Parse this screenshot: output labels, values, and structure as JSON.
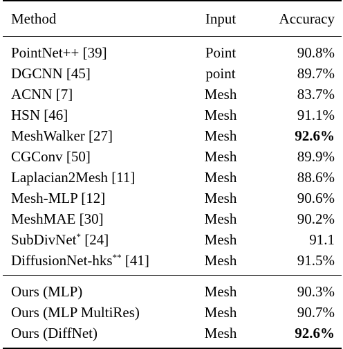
{
  "table": {
    "headers": {
      "method": "Method",
      "input": "Input",
      "accuracy": "Accuracy"
    },
    "rows": [
      {
        "method": "PointNet++ [39]",
        "sup": "",
        "method_tail": "",
        "input": "Point",
        "accuracy": "90.8%",
        "bold": false
      },
      {
        "method": "DGCNN [45]",
        "sup": "",
        "method_tail": "",
        "input": "point",
        "accuracy": "89.7%",
        "bold": false
      },
      {
        "method": "ACNN [7]",
        "sup": "",
        "method_tail": "",
        "input": "Mesh",
        "accuracy": "83.7%",
        "bold": false
      },
      {
        "method": "HSN [46]",
        "sup": "",
        "method_tail": "",
        "input": "Mesh",
        "accuracy": "91.1%",
        "bold": false
      },
      {
        "method": "MeshWalker [27]",
        "sup": "",
        "method_tail": "",
        "input": "Mesh",
        "accuracy": "92.6%",
        "bold": true
      },
      {
        "method": "CGConv [50]",
        "sup": "",
        "method_tail": "",
        "input": "Mesh",
        "accuracy": "89.9%",
        "bold": false
      },
      {
        "method": "Laplacian2Mesh [11]",
        "sup": "",
        "method_tail": "",
        "input": "Mesh",
        "accuracy": "88.6%",
        "bold": false
      },
      {
        "method": "Mesh-MLP [12]",
        "sup": "",
        "method_tail": "",
        "input": "Mesh",
        "accuracy": "90.6%",
        "bold": false
      },
      {
        "method": "MeshMAE [30]",
        "sup": "",
        "method_tail": "",
        "input": "Mesh",
        "accuracy": "90.2%",
        "bold": false
      },
      {
        "method": "SubDivNet",
        "sup": "*",
        "method_tail": " [24]",
        "input": "Mesh",
        "accuracy": "91.1",
        "bold": false
      },
      {
        "method": "DiffusionNet-hks",
        "sup": "**",
        "method_tail": " [41]",
        "input": "Mesh",
        "accuracy": "91.5%",
        "bold": false
      }
    ],
    "ours": [
      {
        "method": "Ours (MLP)",
        "input": "Mesh",
        "accuracy": "90.3%",
        "bold": false
      },
      {
        "method": "Ours (MLP MultiRes)",
        "input": "Mesh",
        "accuracy": "90.7%",
        "bold": false
      },
      {
        "method": "Ours (DiffNet)",
        "input": "Mesh",
        "accuracy": "92.6%",
        "bold": true
      }
    ]
  }
}
